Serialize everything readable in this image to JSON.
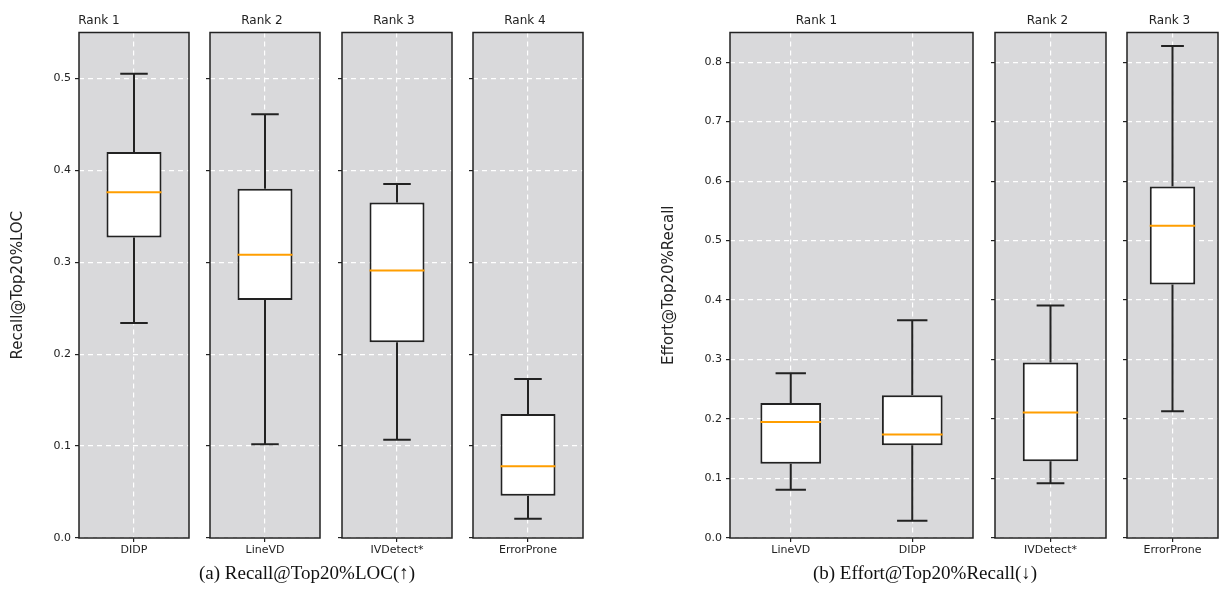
{
  "chart_data": [
    {
      "type": "box",
      "title": "Rank 1",
      "ylabel": "Recall@Top20%LOC",
      "categories": [
        "DIDP"
      ],
      "ylim": [
        0,
        0.55
      ],
      "yticks": [
        {
          "value": 0,
          "label": "0.0"
        },
        0.1,
        0.2,
        0.3,
        0.4,
        0.5
      ],
      "grid": true,
      "annotations": [
        "(a) Recall@Top20%LOC(↑)"
      ],
      "boxes": [
        {
          "low": 0.234,
          "q1": 0.327,
          "median": 0.376,
          "q3": 0.42,
          "high": 0.505
        }
      ]
    },
    {
      "type": "box",
      "title": "Rank 2",
      "categories": [
        "LineVD"
      ],
      "ylim": [
        0,
        0.55
      ],
      "yticks": [
        0,
        0.1,
        0.2,
        0.3,
        0.4,
        0.5
      ],
      "grid": true,
      "tick_labels": "x",
      "boxes": [
        {
          "low": 0.102,
          "q1": 0.259,
          "median": 0.308,
          "q3": 0.38,
          "high": 0.461
        }
      ]
    },
    {
      "type": "box",
      "title": "Rank 3",
      "categories": [
        "IVDetect*"
      ],
      "ylim": [
        0,
        0.55
      ],
      "yticks": [
        0,
        0.1,
        0.2,
        0.3,
        0.4,
        0.5
      ],
      "grid": true,
      "tick_labels": "x",
      "boxes": [
        {
          "low": 0.107,
          "q1": 0.213,
          "median": 0.291,
          "q3": 0.365,
          "high": 0.385
        }
      ]
    },
    {
      "type": "box",
      "title": "Rank 4",
      "categories": [
        "ErrorProne"
      ],
      "ylim": [
        0,
        0.55
      ],
      "yticks": [
        0,
        0.1,
        0.2,
        0.3,
        0.4,
        0.5
      ],
      "grid": true,
      "tick_labels": "x",
      "boxes": [
        {
          "low": 0.021,
          "q1": 0.046,
          "median": 0.078,
          "q3": 0.135,
          "high": 0.173
        }
      ]
    },
    {
      "type": "box",
      "title": "Rank 1",
      "ylabel": "Effort@Top20%Recall",
      "categories": [
        "LineVD",
        "DIDP"
      ],
      "ylim": [
        0,
        0.85
      ],
      "yticks": [
        {
          "value": 0,
          "label": "0.0"
        },
        0.1,
        0.2,
        0.3,
        0.4,
        0.5,
        0.6,
        0.7,
        0.8
      ],
      "grid": true,
      "annotations": [
        "(b) Effort@Top20%Recall(↓)"
      ],
      "boxes": [
        {
          "low": 0.081,
          "q1": 0.125,
          "median": 0.195,
          "q3": 0.227,
          "high": 0.277
        },
        {
          "low": 0.029,
          "q1": 0.156,
          "median": 0.174,
          "q3": 0.24,
          "high": 0.366
        }
      ]
    },
    {
      "type": "box",
      "title": "Rank 2",
      "categories": [
        "IVDetect*"
      ],
      "ylim": [
        0,
        0.85
      ],
      "yticks": [
        0,
        0.1,
        0.2,
        0.3,
        0.4,
        0.5,
        0.6,
        0.7,
        0.8
      ],
      "grid": true,
      "tick_labels": "x",
      "boxes": [
        {
          "low": 0.092,
          "q1": 0.129,
          "median": 0.211,
          "q3": 0.295,
          "high": 0.391
        }
      ]
    },
    {
      "type": "box",
      "title": "Rank 3",
      "categories": [
        "ErrorProne"
      ],
      "ylim": [
        0,
        0.85
      ],
      "yticks": [
        0,
        0.1,
        0.2,
        0.3,
        0.4,
        0.5,
        0.6,
        0.7,
        0.8
      ],
      "grid": true,
      "tick_labels": "x",
      "boxes": [
        {
          "low": 0.213,
          "q1": 0.426,
          "median": 0.525,
          "q3": 0.591,
          "high": 0.827
        }
      ]
    }
  ]
}
